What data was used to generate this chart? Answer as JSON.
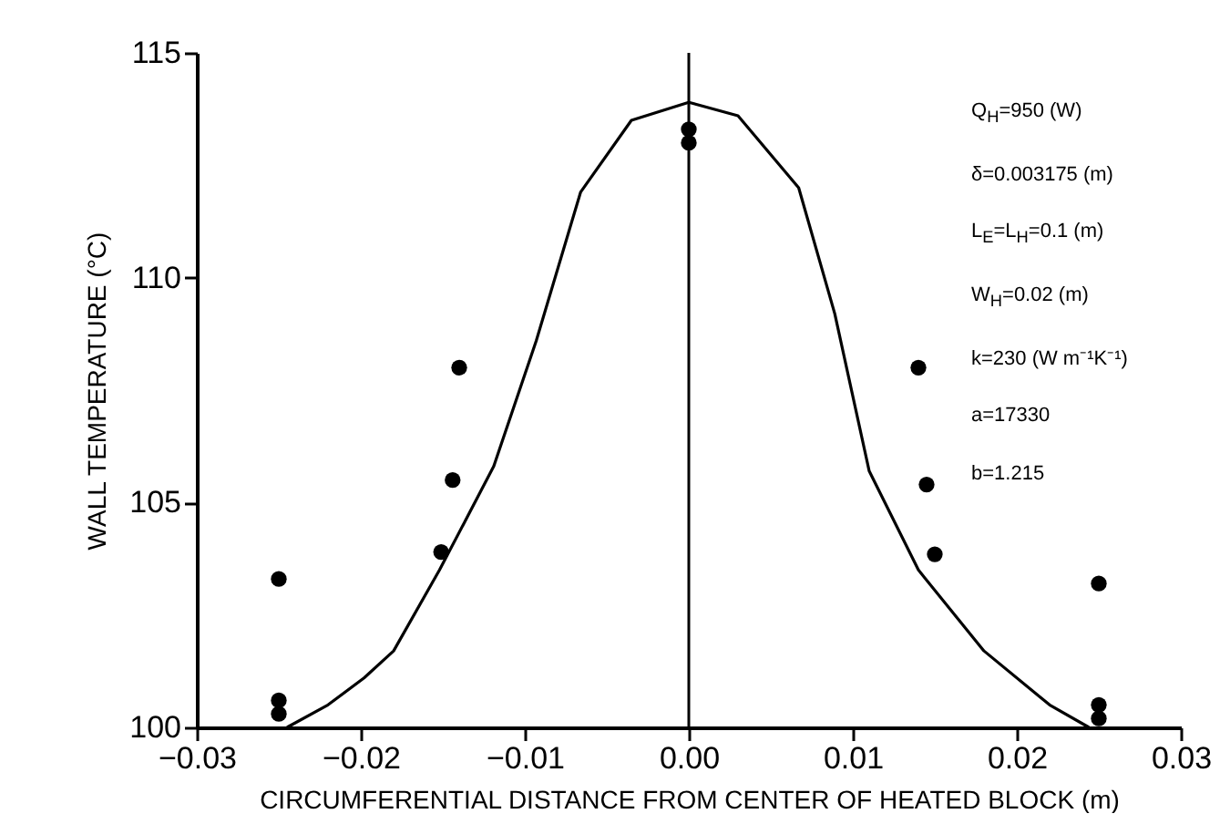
{
  "chart_data": {
    "type": "scatter",
    "xlabel": "CIRCUMFERENTIAL DISTANCE FROM CENTER OF HEATED BLOCK (m)",
    "ylabel": "WALL TEMPERATURE (°C)",
    "xlim": [
      -0.03,
      0.03
    ],
    "xticks": [
      -0.03,
      -0.02,
      -0.01,
      {
        "value": 0,
        "label": "0.00"
      },
      0.01,
      0.02,
      0.03
    ],
    "ylim": [
      100,
      115
    ],
    "yticks": [
      100,
      105,
      110,
      115
    ],
    "grid": false,
    "marker": "circle",
    "series": [
      {
        "color": "#000000",
        "x": [
          -0.025,
          -0.025,
          -0.025,
          -0.014,
          -0.0144,
          -0.0151,
          0.0,
          0.0,
          0.014,
          0.0145,
          0.015,
          0.025,
          0.025,
          0.025
        ],
        "values": [
          103.3,
          100.6,
          100.3,
          108.0,
          105.5,
          103.9,
          113.3,
          113.0,
          108.0,
          105.4,
          103.85,
          103.2,
          100.5,
          100.2
        ]
      },
      {
        "type": "line",
        "color": "#000000",
        "line_style": "solid",
        "marker": "none",
        "x": [
          -0.0245,
          -0.022,
          -0.0198,
          -0.018,
          -0.0152,
          -0.0119,
          -0.0093,
          -0.0066,
          -0.0035,
          0.0,
          0.003,
          0.0067,
          0.0089,
          0.011,
          0.014,
          0.018,
          0.022,
          0.0244
        ],
        "values": [
          100.0,
          100.5,
          101.1,
          101.7,
          103.5,
          105.8,
          108.6,
          111.9,
          113.5,
          113.9,
          113.6,
          112.0,
          109.2,
          105.7,
          103.5,
          101.7,
          100.5,
          100.0
        ]
      }
    ],
    "ref_lines": [
      {
        "axis": "x",
        "value": 0,
        "color": "#000000"
      }
    ],
    "annotations": [
      "Q$_{H}$=950 (W)",
      "δ=0.003175 (m)",
      "L$_{E}$=L$_{H}$=0.1 (m)",
      "W$_{H}$=0.02 (m)",
      "k=230 (W m⁻¹K⁻¹)",
      "a=17330",
      "b=1.215"
    ]
  }
}
